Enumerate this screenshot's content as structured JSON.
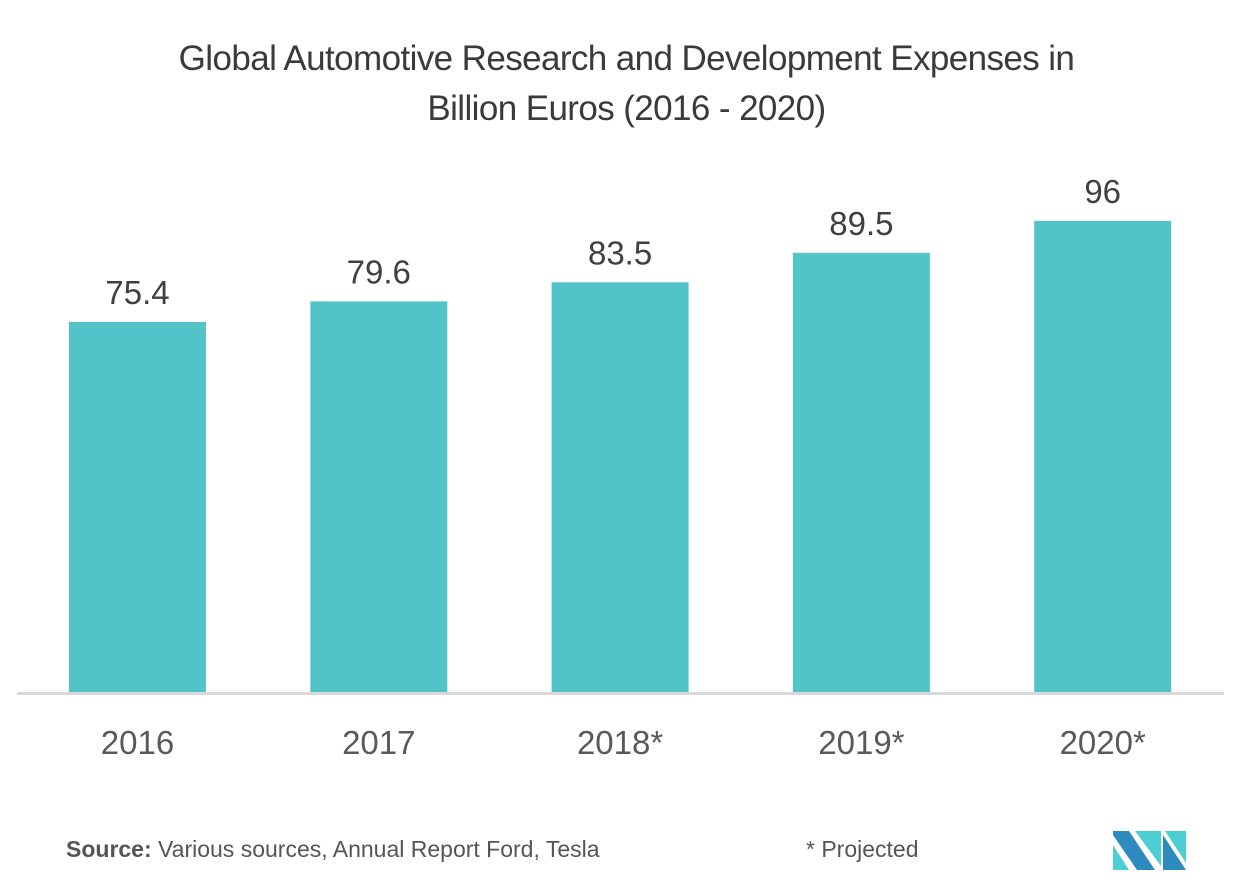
{
  "chart_data": {
    "type": "bar",
    "title": "Global Automotive Research and Development Expenses in Billion Euros (2016 - 2020)",
    "title_lines": [
      "Global Automotive Research and Development Expenses in",
      "Billion Euros (2016 - 2020)"
    ],
    "categories": [
      "2016",
      "2017",
      "2018*",
      "2019*",
      "2020*"
    ],
    "values": [
      75.4,
      79.6,
      83.5,
      89.5,
      96
    ],
    "value_labels": [
      "75.4",
      "79.6",
      "83.5",
      "89.5",
      "96"
    ],
    "xlabel": "",
    "ylabel": "",
    "ylim": [
      0,
      100
    ],
    "grid": false,
    "legend": "none",
    "bar_color": "#52c4c9"
  },
  "footer": {
    "source_label": "Source:",
    "source_text": " Various sources, Annual Report Ford, Tesla",
    "note": "* Projected"
  },
  "logo": {
    "name": "mordor-intelligence-logo",
    "colors": [
      "#2e8bbf",
      "#4ccfd3"
    ]
  }
}
